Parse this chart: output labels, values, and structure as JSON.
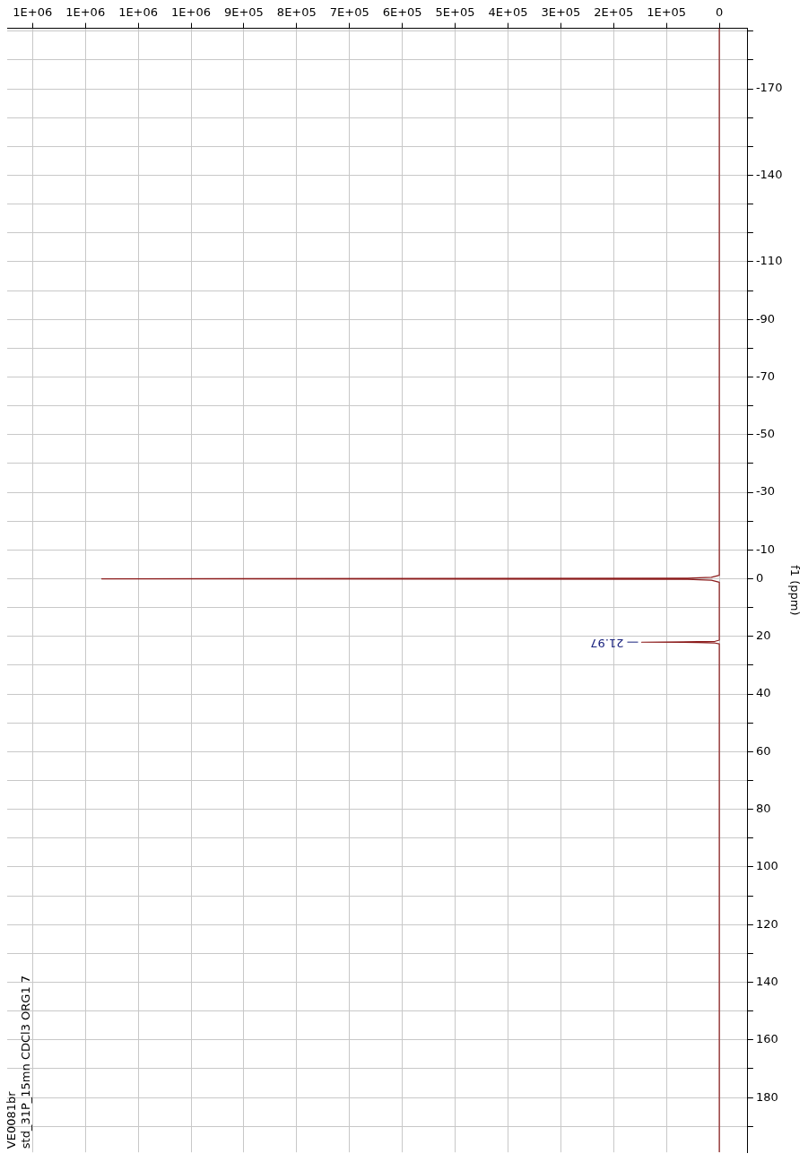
{
  "chart_data": {
    "type": "line",
    "ylabel": "f1 (ppm)",
    "x": [
      0,
      0,
      8000,
      40000,
      147000,
      40000,
      8000,
      0,
      0,
      15000,
      60000,
      1169000,
      60000,
      15000,
      0,
      0
    ],
    "values": [
      199,
      22.6,
      22.3,
      22.1,
      22,
      21.8,
      21.7,
      21.3,
      1.2,
      0.5,
      0.2,
      0,
      -0.2,
      -0.5,
      -1.2,
      -191
    ],
    "color": "#8b1a1a",
    "marker": "none",
    "grid": true,
    "ylim": [
      199,
      -191
    ],
    "yticks": [
      {
        "value": 190,
        "label": null
      },
      180,
      {
        "value": 170,
        "label": null
      },
      160,
      {
        "value": 150,
        "label": null
      },
      140,
      {
        "value": 130,
        "label": null
      },
      120,
      {
        "value": 110,
        "label": null
      },
      100,
      {
        "value": 90,
        "label": null
      },
      80,
      {
        "value": 70,
        "label": null
      },
      60,
      {
        "value": 50,
        "label": null
      },
      40,
      {
        "value": 30,
        "label": null
      },
      20,
      {
        "value": 10,
        "label": null
      },
      0,
      -10,
      {
        "value": -20,
        "label": null
      },
      -30,
      {
        "value": -40,
        "label": null
      },
      -50,
      {
        "value": -60,
        "label": null
      },
      -70,
      {
        "value": -80,
        "label": null
      },
      -90,
      {
        "value": -100,
        "label": null
      },
      -110,
      {
        "value": -120,
        "label": null
      },
      {
        "value": -130,
        "label": null
      },
      -140,
      {
        "value": -150,
        "label": null
      },
      {
        "value": -160,
        "label": null
      },
      -170,
      {
        "value": -180,
        "label": null
      },
      {
        "value": -190,
        "label": null
      }
    ],
    "xlim": [
      1348000,
      -54000
    ],
    "xticks": [
      0,
      {
        "value": 100000,
        "label": "1E+05"
      },
      {
        "value": 200000,
        "label": "2E+05"
      },
      {
        "value": 300000,
        "label": "3E+05"
      },
      {
        "value": 400000,
        "label": "4E+05"
      },
      {
        "value": 500000,
        "label": "5E+05"
      },
      {
        "value": 600000,
        "label": "6E+05"
      },
      {
        "value": 700000,
        "label": "7E+05"
      },
      {
        "value": 800000,
        "label": "8E+05"
      },
      {
        "value": 900000,
        "label": "9E+05"
      },
      {
        "value": 1000000,
        "label": "1E+06"
      },
      {
        "value": 1100000,
        "label": "1E+06"
      },
      {
        "value": 1200000,
        "label": "1E+06"
      },
      {
        "value": 1300000,
        "label": "1E+06"
      }
    ],
    "annotations": [
      {
        "text": "21.97",
        "x": 147000,
        "y": 21.97
      },
      "VE0081br",
      "std_31P_15mn CDCl3 ORG1 7"
    ]
  }
}
